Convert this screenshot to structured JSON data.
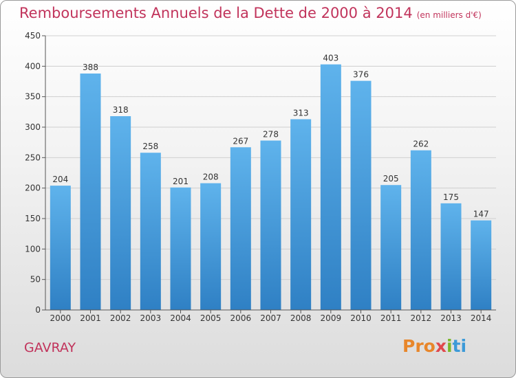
{
  "header": {
    "title": "Remboursements Annuels de la Dette de 2000 à 2014",
    "subtitle": "(en milliers d'€)"
  },
  "footer": {
    "city": "GAVRAY",
    "logo_parts": [
      "Pro",
      "x",
      "i",
      "ti"
    ]
  },
  "colors": {
    "title": "#c1335b",
    "bar_top": "#5fb3ec",
    "bar_bottom": "#2f80c4",
    "axis": "#333333"
  },
  "chart_data": {
    "type": "bar",
    "title": "Remboursements Annuels de la Dette de 2000 à 2014",
    "subtitle": "(en milliers d'€)",
    "categories": [
      "2000",
      "2001",
      "2002",
      "2003",
      "2004",
      "2005",
      "2006",
      "2007",
      "2008",
      "2009",
      "2010",
      "2011",
      "2012",
      "2013",
      "2014"
    ],
    "values": [
      204,
      388,
      318,
      258,
      201,
      208,
      267,
      278,
      313,
      403,
      376,
      205,
      262,
      175,
      147
    ],
    "ylim": [
      0,
      450
    ],
    "yticks": [
      0,
      50,
      100,
      150,
      200,
      250,
      300,
      350,
      400,
      450
    ],
    "grid": true,
    "legend": "none"
  }
}
